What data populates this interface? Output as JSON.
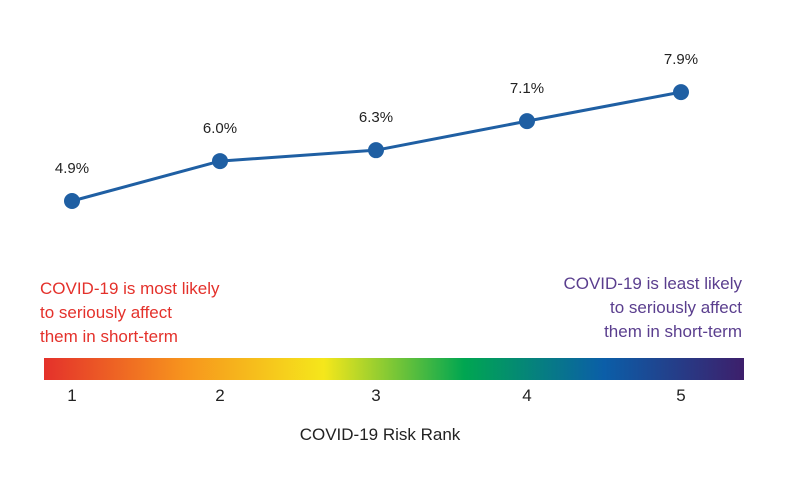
{
  "chart_data": {
    "type": "line",
    "categories": [
      "1",
      "2",
      "3",
      "4",
      "5"
    ],
    "values": [
      4.9,
      6.0,
      6.3,
      7.1,
      7.9
    ],
    "data_labels": [
      "4.9%",
      "6.0%",
      "6.3%",
      "7.1%",
      "7.9%"
    ],
    "title": "",
    "xlabel": "COVID-19 Risk Rank",
    "ylabel": "",
    "line_color": "#1f5fa3",
    "grid": false,
    "annotations": {
      "left": {
        "lines": [
          "COVID-19 is most likely",
          "to seriously affect",
          "them in short-term"
        ],
        "color": "#e4312b"
      },
      "right": {
        "lines": [
          "COVID-19 is least likely",
          "to seriously affect",
          "them in short-term"
        ],
        "color": "#5a3e8e"
      }
    },
    "gradient_colors": [
      "#e4312b",
      "#f7941d",
      "#f5e71b",
      "#00a651",
      "#0b5ea8",
      "#3d1f6b"
    ]
  }
}
